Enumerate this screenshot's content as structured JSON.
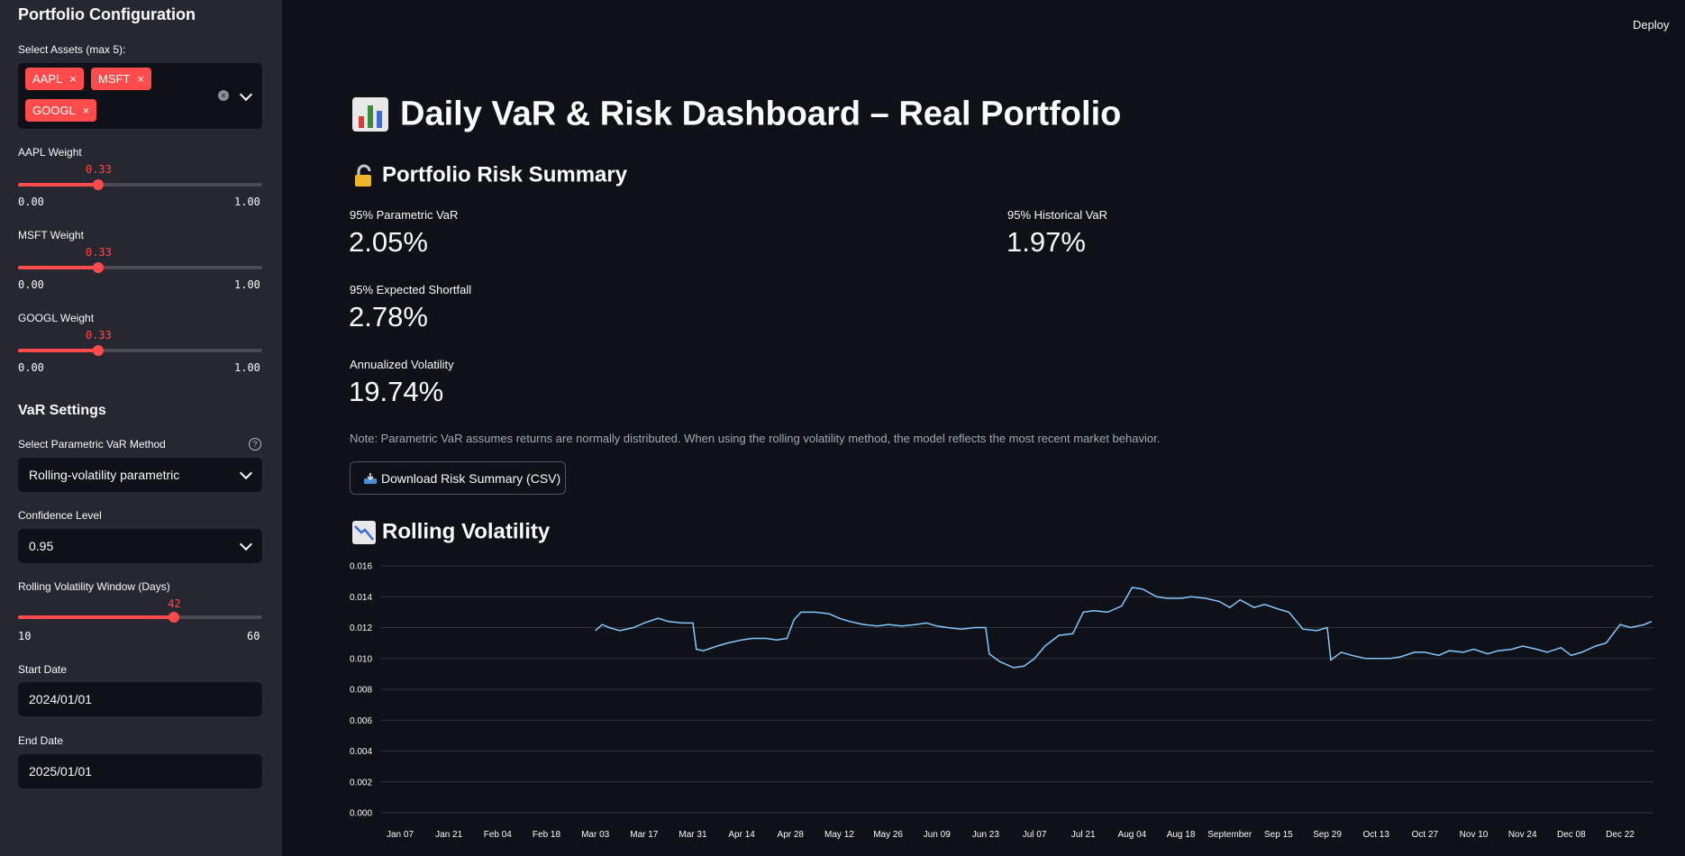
{
  "header": {
    "deploy_label": "Deploy"
  },
  "sidebar": {
    "title": "Portfolio Configuration",
    "assets": {
      "label": "Select Assets (max 5):",
      "selected": [
        "AAPL",
        "MSFT",
        "GOOGL"
      ],
      "remove_symbol": "×",
      "clear_symbol": "×"
    },
    "weights": [
      {
        "label": "AAPL Weight",
        "value": "0.33",
        "level": 0.33,
        "min": "0.00",
        "max": "1.00"
      },
      {
        "label": "MSFT Weight",
        "value": "0.33",
        "level": 0.33,
        "min": "0.00",
        "max": "1.00"
      },
      {
        "label": "GOOGL Weight",
        "value": "0.33",
        "level": 0.33,
        "min": "0.00",
        "max": "1.00"
      }
    ],
    "var_settings": {
      "heading": "VaR Settings",
      "method_label": "Select Parametric VaR Method",
      "help_symbol": "?",
      "method_value": "Rolling-volatility parametric",
      "confidence_label": "Confidence Level",
      "confidence_value": "0.95",
      "window_label": "Rolling Volatility Window (Days)",
      "window_value": "42",
      "window_level": 0.64,
      "window_min": "10",
      "window_max": "60",
      "start_label": "Start Date",
      "start_value": "2024/01/01",
      "end_label": "End Date",
      "end_value": "2025/01/01"
    }
  },
  "main": {
    "title": "Daily VaR & Risk Dashboard – Real Portfolio",
    "summary_heading": "Portfolio Risk Summary",
    "metrics": {
      "parametric_label": "95% Parametric VaR",
      "parametric_value": "2.05%",
      "historical_label": "95% Historical VaR",
      "historical_value": "1.97%",
      "es_label": "95% Expected Shortfall",
      "es_value": "2.78%",
      "vol_label": "Annualized Volatility",
      "vol_value": "19.74%"
    },
    "note": "Note: Parametric VaR assumes returns are normally distributed. When using the rolling volatility method, the model reflects the most recent market behavior.",
    "download_label": "Download Risk Summary (CSV)",
    "volatility_heading": "Rolling Volatility",
    "colors": {
      "accent": "#ff4b4b",
      "line": "#83c9ff",
      "background": "#0e1117",
      "sidebar": "#262730"
    }
  },
  "chart_data": {
    "type": "line",
    "title": "",
    "xlabel": "",
    "ylabel": "",
    "ylim": [
      0,
      0.016
    ],
    "grid": true,
    "yticks": [
      "0.000",
      "0.002",
      "0.004",
      "0.006",
      "0.008",
      "0.010",
      "0.012",
      "0.014",
      "0.016"
    ],
    "xticks": [
      "Jan 07",
      "Jan 21",
      "Feb 04",
      "Feb 18",
      "Mar 03",
      "Mar 17",
      "Mar 31",
      "Apr 14",
      "Apr 28",
      "May 12",
      "May 26",
      "Jun 09",
      "Jun 23",
      "Jul 07",
      "Jul 21",
      "Aug 04",
      "Aug 18",
      "September",
      "Sep 15",
      "Sep 29",
      "Oct 13",
      "Oct 27",
      "Nov 10",
      "Nov 24",
      "Dec 08",
      "Dec 22"
    ],
    "series": [
      {
        "x": [
          "2024-03-03",
          "2024-03-05",
          "2024-03-07",
          "2024-03-10",
          "2024-03-14",
          "2024-03-17",
          "2024-03-21",
          "2024-03-24",
          "2024-03-28",
          "2024-03-31",
          "2024-04-01",
          "2024-04-03",
          "2024-04-07",
          "2024-04-10",
          "2024-04-14",
          "2024-04-17",
          "2024-04-21",
          "2024-04-24",
          "2024-04-27",
          "2024-04-29",
          "2024-05-01",
          "2024-05-05",
          "2024-05-09",
          "2024-05-12",
          "2024-05-15",
          "2024-05-19",
          "2024-05-23",
          "2024-05-26",
          "2024-05-30",
          "2024-06-03",
          "2024-06-06",
          "2024-06-09",
          "2024-06-12",
          "2024-06-16",
          "2024-06-20",
          "2024-06-23",
          "2024-06-24",
          "2024-06-27",
          "2024-07-01",
          "2024-07-04",
          "2024-07-07",
          "2024-07-10",
          "2024-07-14",
          "2024-07-18",
          "2024-07-21",
          "2024-07-24",
          "2024-07-28",
          "2024-08-01",
          "2024-08-04",
          "2024-08-07",
          "2024-08-11",
          "2024-08-14",
          "2024-08-18",
          "2024-08-21",
          "2024-08-25",
          "2024-08-29",
          "2024-09-01",
          "2024-09-04",
          "2024-09-08",
          "2024-09-11",
          "2024-09-15",
          "2024-09-18",
          "2024-09-22",
          "2024-09-26",
          "2024-09-29",
          "2024-09-30",
          "2024-10-03",
          "2024-10-06",
          "2024-10-10",
          "2024-10-13",
          "2024-10-17",
          "2024-10-20",
          "2024-10-24",
          "2024-10-27",
          "2024-10-31",
          "2024-11-03",
          "2024-11-07",
          "2024-11-10",
          "2024-11-14",
          "2024-11-17",
          "2024-11-21",
          "2024-11-24",
          "2024-11-28",
          "2024-12-01",
          "2024-12-05",
          "2024-12-08",
          "2024-12-11",
          "2024-12-15",
          "2024-12-18",
          "2024-12-22",
          "2024-12-25",
          "2024-12-29",
          "2024-12-31"
        ],
        "y": [
          0.0118,
          0.0122,
          0.012,
          0.0118,
          0.012,
          0.0123,
          0.0126,
          0.0124,
          0.0123,
          0.0123,
          0.0106,
          0.0105,
          0.0108,
          0.011,
          0.0112,
          0.0113,
          0.0113,
          0.0112,
          0.0113,
          0.0125,
          0.013,
          0.013,
          0.0129,
          0.0126,
          0.0124,
          0.0122,
          0.0121,
          0.0122,
          0.0121,
          0.0122,
          0.0123,
          0.0121,
          0.012,
          0.0119,
          0.012,
          0.012,
          0.0103,
          0.0098,
          0.0094,
          0.0095,
          0.01,
          0.0108,
          0.0115,
          0.0116,
          0.013,
          0.0131,
          0.013,
          0.0134,
          0.0146,
          0.0145,
          0.014,
          0.0139,
          0.0139,
          0.014,
          0.0139,
          0.0137,
          0.0133,
          0.0138,
          0.0133,
          0.0135,
          0.0132,
          0.013,
          0.0119,
          0.0118,
          0.012,
          0.0099,
          0.0104,
          0.0102,
          0.01,
          0.01,
          0.01,
          0.0101,
          0.0104,
          0.0104,
          0.0102,
          0.0105,
          0.0104,
          0.0106,
          0.0103,
          0.0105,
          0.0106,
          0.0108,
          0.0106,
          0.0104,
          0.0107,
          0.0102,
          0.0104,
          0.0108,
          0.011,
          0.0122,
          0.012,
          0.0122,
          0.0124
        ]
      }
    ]
  }
}
